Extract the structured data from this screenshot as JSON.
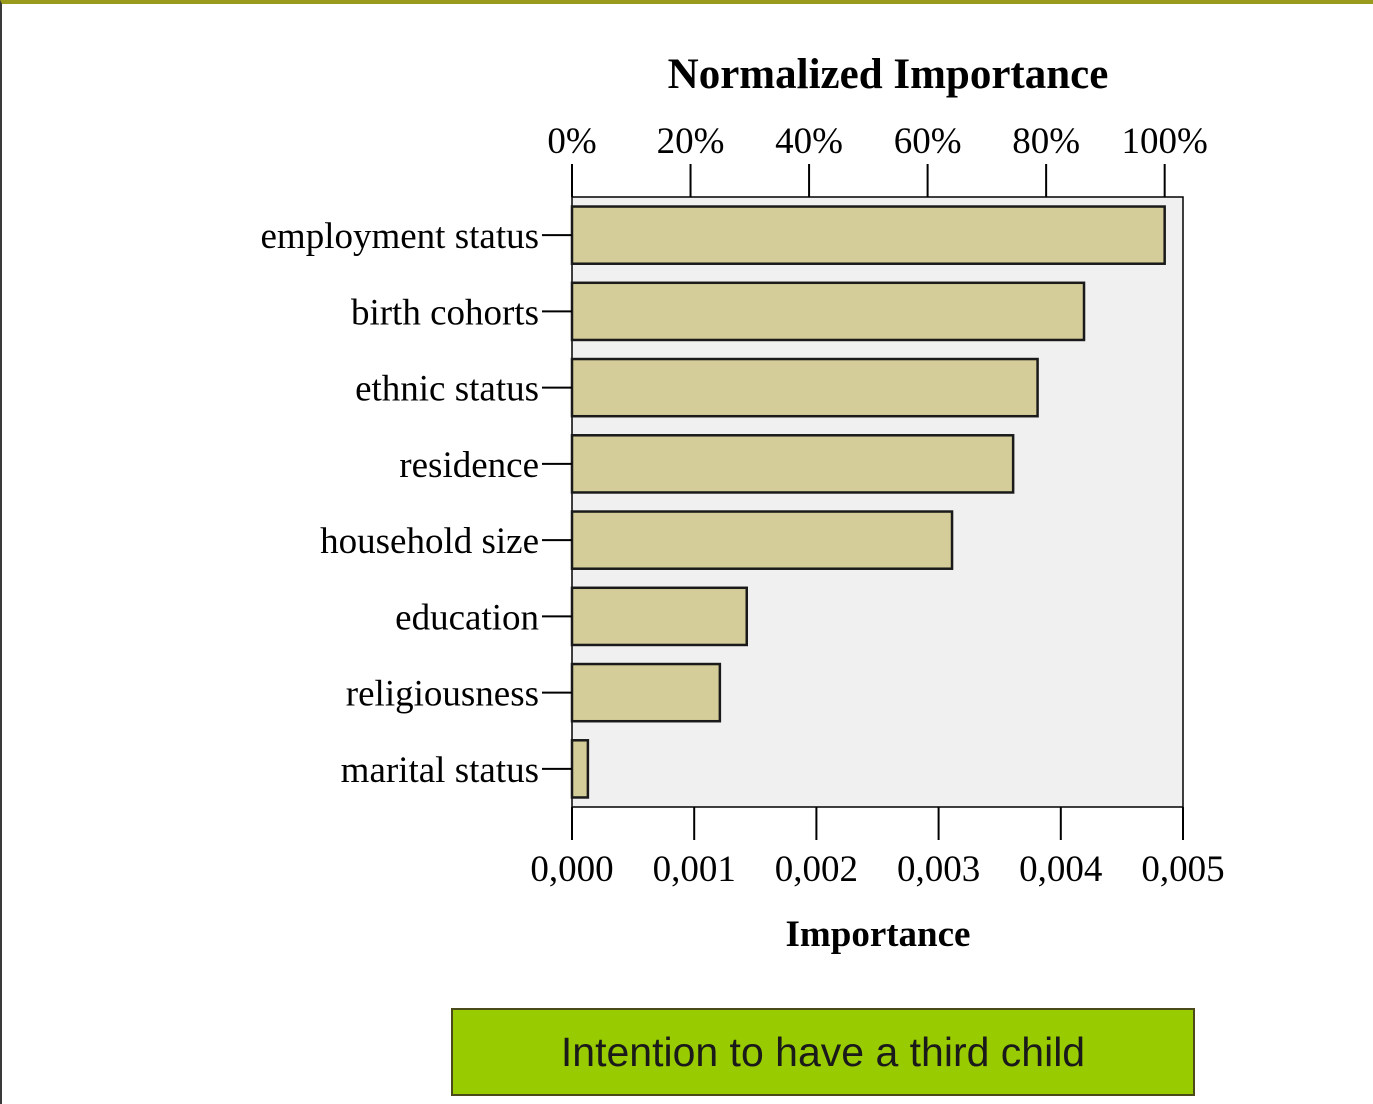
{
  "chart_data": {
    "type": "bar",
    "orientation": "horizontal",
    "categories": [
      "employment status",
      "birth cohorts",
      "ethnic status",
      "residence",
      "household size",
      "education",
      "religiousness",
      "marital status"
    ],
    "values": [
      0.00485,
      0.00419,
      0.00381,
      0.00361,
      0.00311,
      0.00143,
      0.00121,
      0.00013
    ],
    "xlabel": "Importance",
    "xlim": [
      0,
      0.005
    ],
    "x_ticks": [
      "0,000",
      "0,001",
      "0,002",
      "0,003",
      "0,004",
      "0,005"
    ],
    "top_axis_label": "Normalized Importance",
    "top_axis_ticks": [
      "0%",
      "20%",
      "40%",
      "60%",
      "80%",
      "100%"
    ],
    "top_axis_max_fraction": 1.0,
    "grid": false,
    "colors": {
      "bar_fill": "#d4cc99",
      "bar_stroke": "#1a1a1a",
      "plot_background": "#f0f0f0"
    }
  },
  "caption": {
    "text": "Intention to have a third child",
    "color": "#99cc00"
  }
}
